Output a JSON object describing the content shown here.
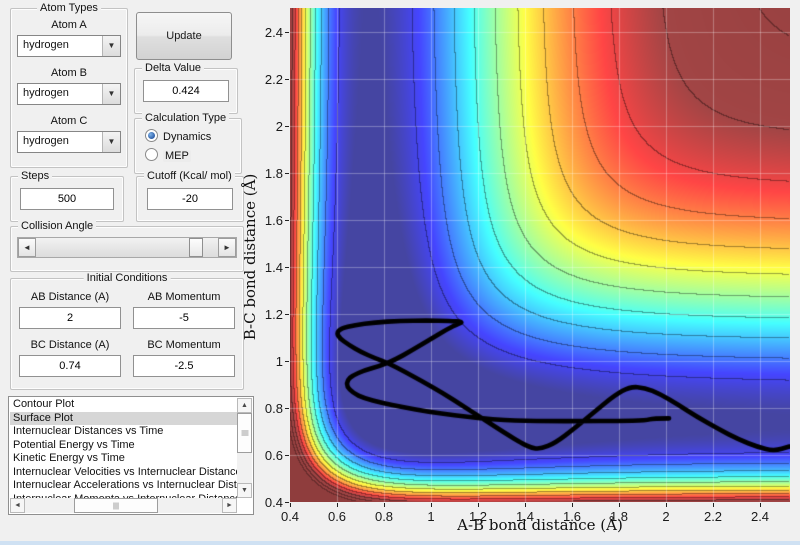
{
  "panels": {
    "atom_types": {
      "title": "Atom Types",
      "fields": [
        {
          "label": "Atom A",
          "value": "hydrogen"
        },
        {
          "label": "Atom B",
          "value": "hydrogen"
        },
        {
          "label": "Atom C",
          "value": "hydrogen"
        }
      ]
    },
    "update_button": {
      "label": "Update"
    },
    "delta": {
      "title": "Delta Value",
      "value": "0.424"
    },
    "calc_type": {
      "title": "Calculation Type",
      "options": [
        {
          "label": "Dynamics",
          "selected": true
        },
        {
          "label": "MEP",
          "selected": false
        }
      ]
    },
    "steps": {
      "title": "Steps",
      "value": "500"
    },
    "cutoff": {
      "title": "Cutoff (Kcal/ mol)",
      "value": "-20"
    },
    "collision_angle": {
      "title": "Collision Angle",
      "thumb_pos": 0.89
    },
    "initial_conditions": {
      "title": "Initial Conditions",
      "fields": [
        {
          "label": "AB Distance (A)",
          "value": "2"
        },
        {
          "label": "AB Momentum",
          "value": "-5"
        },
        {
          "label": "BC Distance (A)",
          "value": "0.74"
        },
        {
          "label": "BC Momentum",
          "value": "-2.5"
        }
      ]
    },
    "plot_list": {
      "items": [
        "Contour Plot",
        "Surface Plot",
        "Internuclear Distances vs Time",
        "Potential Energy vs Time",
        "Kinetic Energy vs Time",
        "Internuclear Velocities vs Internuclear Distance",
        "Internuclear Accelerations vs Internuclear Distance",
        "Internuclear Momenta vs Internuclear Distance"
      ],
      "selected_index": 1
    }
  },
  "chart_data": {
    "type": "contour",
    "xlabel": "A-B bond distance (Å)",
    "ylabel": "B-C bond distance (Å)",
    "xlim": [
      0.4,
      2.527
    ],
    "ylim": [
      0.4,
      2.502
    ],
    "xticks": [
      0.4,
      0.6,
      0.8,
      1,
      1.2,
      1.4,
      1.6,
      1.8,
      2,
      2.2,
      2.4
    ],
    "yticks": [
      0.4,
      0.6,
      0.8,
      1,
      1.2,
      1.4,
      1.6,
      1.8,
      2,
      2.2,
      2.4
    ],
    "xtick_labels": [
      "0.4",
      "0.6",
      "0.8",
      "1",
      "1.2",
      "1.4",
      "1.6",
      "1.8",
      "2",
      "2.2",
      "2.4"
    ],
    "ytick_labels": [
      "0.4",
      "0.6",
      "0.8",
      "1",
      "1.2",
      "1.4",
      "1.6",
      "1.8",
      "2",
      "2.2",
      "2.4"
    ],
    "grid": true,
    "colormap": "jet",
    "white_blend": 0.27,
    "clim": [
      -110,
      -20
    ],
    "cutoff_kcal": -20,
    "contour_line_levels": [
      -101,
      -92,
      -83,
      -74,
      -65,
      -56,
      -47,
      -38,
      -29,
      -20,
      -11,
      -2
    ],
    "surface_model": {
      "name": "LEPS",
      "D": 109.458,
      "beta": 1.942,
      "r0": 0.7419,
      "sato_delta": 0.424,
      "grid_n": 88
    },
    "trajectory": {
      "color": "#000000",
      "width": 4.6,
      "points": [
        [
          2.013,
          0.756
        ],
        [
          1.945,
          0.756
        ],
        [
          1.915,
          0.747
        ],
        [
          1.8,
          0.745
        ],
        [
          1.65,
          0.744
        ],
        [
          1.5,
          0.744
        ],
        [
          1.4,
          0.745
        ],
        [
          1.315,
          0.748
        ],
        [
          1.21,
          0.756
        ],
        [
          1.1,
          0.769
        ],
        [
          0.99,
          0.784
        ],
        [
          0.88,
          0.804
        ],
        [
          0.79,
          0.822
        ],
        [
          0.715,
          0.842
        ],
        [
          0.668,
          0.864
        ],
        [
          0.641,
          0.893
        ],
        [
          0.645,
          0.919
        ],
        [
          0.666,
          0.938
        ],
        [
          0.716,
          0.96
        ],
        [
          0.78,
          0.978
        ],
        [
          0.845,
          1.004
        ],
        [
          0.92,
          1.046
        ],
        [
          1.0,
          1.094
        ],
        [
          1.07,
          1.136
        ],
        [
          1.118,
          1.16
        ],
        [
          1.136,
          1.166
        ],
        [
          1.08,
          1.171
        ],
        [
          0.98,
          1.172
        ],
        [
          0.87,
          1.171
        ],
        [
          0.76,
          1.164
        ],
        [
          0.675,
          1.153
        ],
        [
          0.617,
          1.138
        ],
        [
          0.599,
          1.12
        ],
        [
          0.61,
          1.098
        ],
        [
          0.648,
          1.07
        ],
        [
          0.705,
          1.037
        ],
        [
          0.762,
          1.012
        ],
        [
          0.817,
          0.991
        ],
        [
          0.89,
          0.953
        ],
        [
          0.96,
          0.915
        ],
        [
          1.05,
          0.864
        ],
        [
          1.14,
          0.806
        ],
        [
          1.23,
          0.748
        ],
        [
          1.32,
          0.69
        ],
        [
          1.385,
          0.651
        ],
        [
          1.425,
          0.631
        ],
        [
          1.465,
          0.625
        ],
        [
          1.53,
          0.652
        ],
        [
          1.61,
          0.713
        ],
        [
          1.7,
          0.787
        ],
        [
          1.78,
          0.853
        ],
        [
          1.847,
          0.891
        ],
        [
          1.91,
          0.886
        ],
        [
          1.975,
          0.859
        ],
        [
          2.05,
          0.815
        ],
        [
          2.13,
          0.764
        ],
        [
          2.22,
          0.712
        ],
        [
          2.31,
          0.666
        ],
        [
          2.39,
          0.634
        ],
        [
          2.46,
          0.617
        ],
        [
          2.525,
          0.636
        ]
      ]
    }
  }
}
